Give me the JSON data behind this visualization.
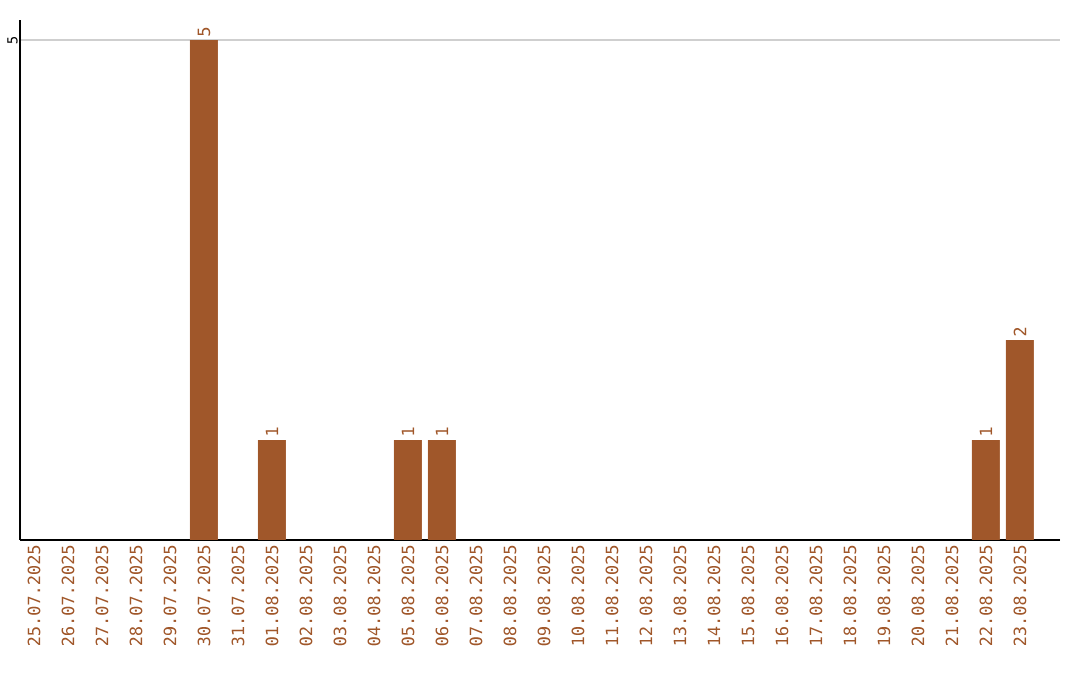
{
  "chart_data": {
    "type": "bar",
    "categories": [
      "25.07.2025",
      "26.07.2025",
      "27.07.2025",
      "28.07.2025",
      "29.07.2025",
      "30.07.2025",
      "31.07.2025",
      "01.08.2025",
      "02.08.2025",
      "03.08.2025",
      "04.08.2025",
      "05.08.2025",
      "06.08.2025",
      "07.08.2025",
      "08.08.2025",
      "09.08.2025",
      "10.08.2025",
      "11.08.2025",
      "12.08.2025",
      "13.08.2025",
      "14.08.2025",
      "15.08.2025",
      "16.08.2025",
      "17.08.2025",
      "18.08.2025",
      "19.08.2025",
      "20.08.2025",
      "21.08.2025",
      "22.08.2025",
      "23.08.2025"
    ],
    "values": [
      0,
      0,
      0,
      0,
      0,
      5,
      0,
      1,
      0,
      0,
      0,
      1,
      1,
      0,
      0,
      0,
      0,
      0,
      0,
      0,
      0,
      0,
      0,
      0,
      0,
      0,
      0,
      0,
      1,
      2
    ],
    "value_labels": [
      null,
      null,
      null,
      null,
      null,
      "5",
      null,
      "1",
      null,
      null,
      null,
      "1",
      "1",
      null,
      null,
      null,
      null,
      null,
      null,
      null,
      null,
      null,
      null,
      null,
      null,
      null,
      null,
      null,
      "1",
      "2"
    ],
    "color": "#a0572a",
    "ylim": [
      0,
      5.2
    ],
    "yticks": [
      5
    ],
    "grid": "y"
  }
}
